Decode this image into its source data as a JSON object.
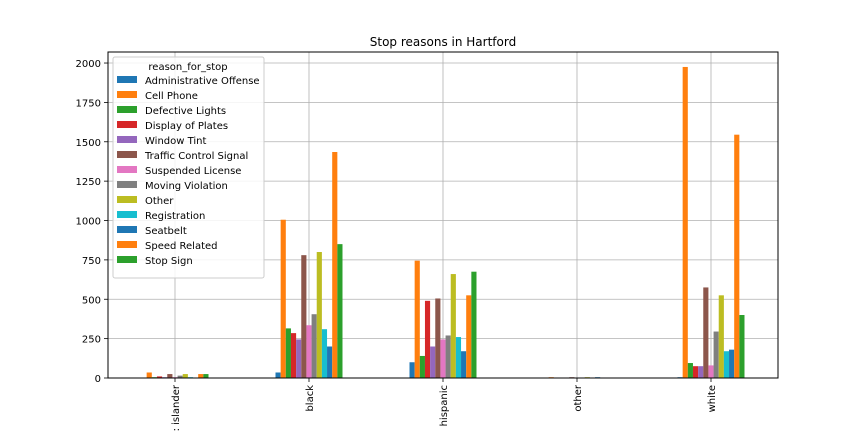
{
  "chart_data": {
    "type": "bar",
    "title": "Stop reasons in Hartford",
    "xlabel": "",
    "ylabel": "",
    "categories": [
      "asian/pacific islander",
      "black",
      "hispanic",
      "other",
      "white"
    ],
    "category_tick_labels": [
      ": islander",
      "black",
      "hispanic",
      "other",
      "white"
    ],
    "ylim": [
      0,
      2070
    ],
    "yticks": [
      0,
      250,
      500,
      750,
      1000,
      1250,
      1500,
      1750,
      2000
    ],
    "grid": true,
    "legend": {
      "title": "reason_for_stop",
      "placement": "top-left"
    },
    "series": [
      {
        "name": "Administrative Offense",
        "color": "#1f77b4",
        "values": [
          0,
          35,
          100,
          0,
          5
        ]
      },
      {
        "name": "Cell Phone",
        "color": "#ff7f0e",
        "values": [
          35,
          1005,
          745,
          5,
          1975
        ]
      },
      {
        "name": "Defective Lights",
        "color": "#2ca02c",
        "values": [
          5,
          315,
          140,
          0,
          95
        ]
      },
      {
        "name": "Display of Plates",
        "color": "#d62728",
        "values": [
          10,
          285,
          490,
          0,
          75
        ]
      },
      {
        "name": "Window Tint",
        "color": "#9467bd",
        "values": [
          5,
          245,
          200,
          0,
          75
        ]
      },
      {
        "name": "Traffic Control Signal",
        "color": "#8c564b",
        "values": [
          25,
          780,
          505,
          5,
          575
        ]
      },
      {
        "name": "Suspended License",
        "color": "#e377c2",
        "values": [
          5,
          335,
          245,
          0,
          80
        ]
      },
      {
        "name": "Moving Violation",
        "color": "#7f7f7f",
        "values": [
          15,
          405,
          270,
          0,
          295
        ]
      },
      {
        "name": "Other",
        "color": "#bcbd22",
        "values": [
          25,
          800,
          660,
          5,
          525
        ]
      },
      {
        "name": "Registration",
        "color": "#17becf",
        "values": [
          5,
          310,
          260,
          0,
          170
        ]
      },
      {
        "name": "Seatbelt",
        "color": "#1f77b4",
        "values": [
          0,
          200,
          170,
          5,
          180
        ]
      },
      {
        "name": "Speed Related",
        "color": "#ff7f0e",
        "values": [
          25,
          1435,
          525,
          0,
          1545
        ]
      },
      {
        "name": "Stop Sign",
        "color": "#2ca02c",
        "values": [
          25,
          850,
          675,
          0,
          400
        ]
      }
    ]
  }
}
